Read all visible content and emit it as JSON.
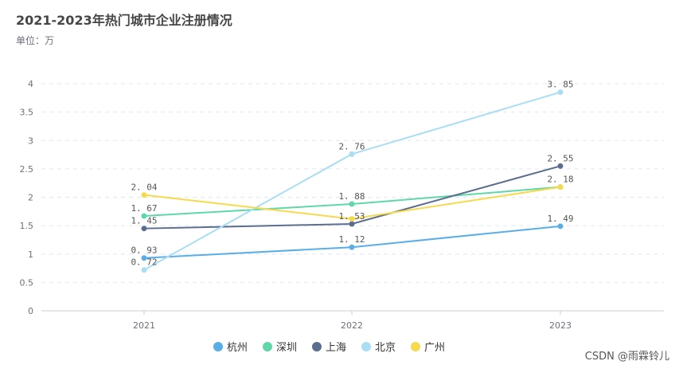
{
  "title": "2021-2023年热门城市企业注册情况",
  "subtitle": "单位：万",
  "watermark": "CSDN @雨霖铃儿",
  "chart_data": {
    "type": "line",
    "title": "2021-2023年热门城市企业注册情况",
    "x": [
      "2021",
      "2022",
      "2023"
    ],
    "yticks": [
      "0",
      "0.5",
      "1",
      "1.5",
      "2",
      "2.5",
      "3",
      "3.5",
      "4"
    ],
    "ylim": [
      0,
      4
    ],
    "grid": true,
    "legend_position": "bottom",
    "series": [
      {
        "name": "杭州",
        "color": "#5aaee8",
        "values": [
          0.93,
          1.12,
          1.49
        ],
        "labels": [
          "0. 93",
          "1. 12",
          "1. 49"
        ]
      },
      {
        "name": "深圳",
        "color": "#5fd8a8",
        "values": [
          1.67,
          1.88,
          2.18
        ],
        "labels": [
          "1. 67",
          "1. 88",
          ""
        ]
      },
      {
        "name": "上海",
        "color": "#5b6e8f",
        "values": [
          1.45,
          1.53,
          2.55
        ],
        "labels": [
          "1. 45",
          "1. 53",
          "2. 55"
        ]
      },
      {
        "name": "北京",
        "color": "#a9def5",
        "values": [
          0.72,
          2.76,
          3.85
        ],
        "labels": [
          "0. 72",
          "2. 76",
          "3. 85"
        ]
      },
      {
        "name": "广州",
        "color": "#f7d94c",
        "values": [
          2.04,
          1.62,
          2.18
        ],
        "labels": [
          "2. 04",
          "",
          "2. 18"
        ]
      }
    ]
  }
}
